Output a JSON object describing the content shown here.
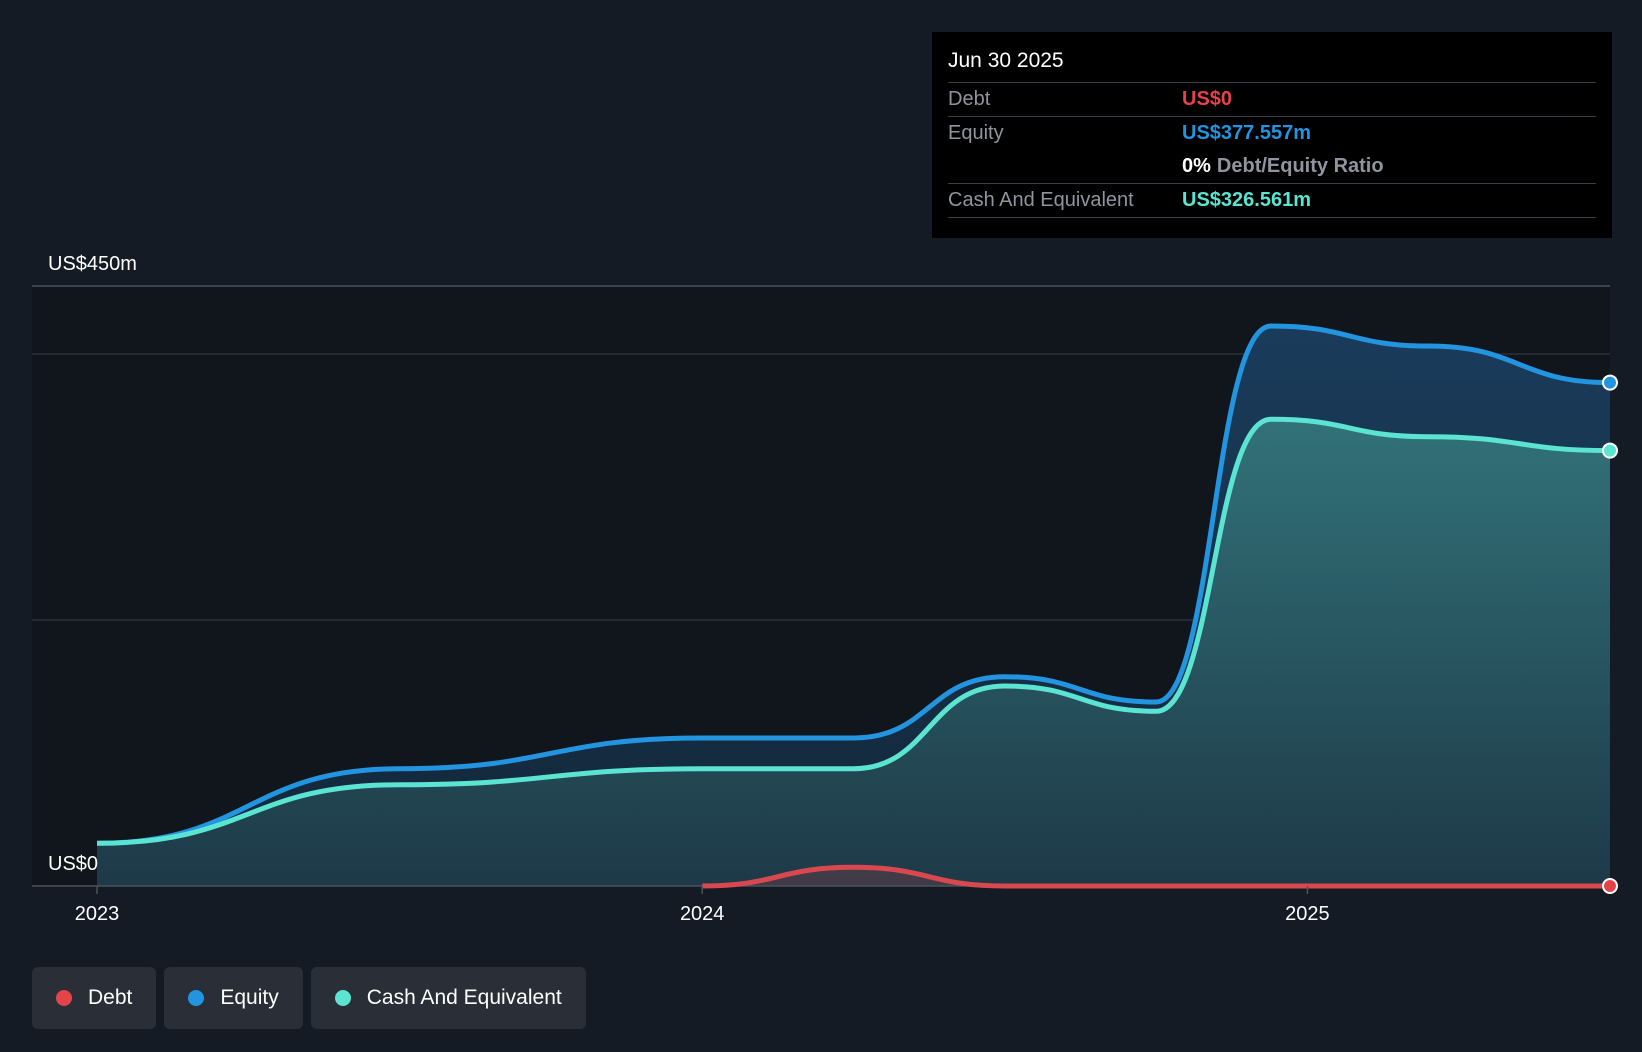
{
  "tooltip": {
    "date": "Jun 30 2025",
    "debt_label": "Debt",
    "debt_value": "US$0",
    "equity_label": "Equity",
    "equity_value": "US$377.557m",
    "ratio_pct": "0%",
    "ratio_label": "Debt/Equity Ratio",
    "cash_label": "Cash And Equivalent",
    "cash_value": "US$326.561m"
  },
  "legend": {
    "debt": "Debt",
    "equity": "Equity",
    "cash": "Cash And Equivalent"
  },
  "colors": {
    "debt": "#e5434a",
    "equity": "#2394df",
    "cash": "#5ae4d1",
    "background": "#151b24"
  },
  "chart_data": {
    "type": "area",
    "title": "",
    "y_top_label": "US$450m",
    "y_bottom_label": "US$0",
    "ylim": [
      0,
      450
    ],
    "xlim": [
      2023.0,
      2025.5
    ],
    "x_ticks": [
      2023,
      2024,
      2025
    ],
    "x_tick_labels": [
      "2023",
      "2024",
      "2025"
    ],
    "series": [
      {
        "name": "Equity",
        "key": "equity",
        "points": [
          [
            2023.0,
            32
          ],
          [
            2023.5,
            88
          ],
          [
            2024.0,
            111
          ],
          [
            2024.25,
            111
          ],
          [
            2024.5,
            157
          ],
          [
            2024.75,
            138
          ],
          [
            2024.94,
            420
          ],
          [
            2025.2,
            405
          ],
          [
            2025.5,
            377.557
          ]
        ]
      },
      {
        "name": "Cash And Equivalent",
        "key": "cash",
        "points": [
          [
            2023.0,
            32
          ],
          [
            2023.5,
            76
          ],
          [
            2024.0,
            88
          ],
          [
            2024.25,
            88
          ],
          [
            2024.5,
            150
          ],
          [
            2024.75,
            131
          ],
          [
            2024.94,
            350
          ],
          [
            2025.2,
            337
          ],
          [
            2025.5,
            326.561
          ]
        ]
      },
      {
        "name": "Debt",
        "key": "debt",
        "points": [
          [
            2024.0,
            0
          ],
          [
            2024.25,
            14
          ],
          [
            2024.5,
            0
          ],
          [
            2025.5,
            0
          ]
        ]
      }
    ]
  }
}
